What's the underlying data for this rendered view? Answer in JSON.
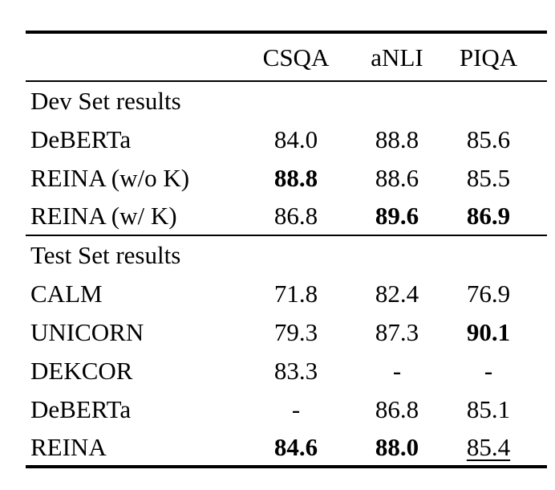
{
  "colors": {
    "background": "#ffffff",
    "text": "#000000",
    "rule": "#000000"
  },
  "table": {
    "columns": [
      "CSQA",
      "aNLI",
      "PIQA"
    ],
    "sections": [
      {
        "title": "Dev Set results",
        "rows": [
          {
            "label": "DeBERTa",
            "values": [
              {
                "text": "84.0"
              },
              {
                "text": "88.8"
              },
              {
                "text": "85.6"
              }
            ]
          },
          {
            "label": "REINA (w/o K)",
            "values": [
              {
                "text": "88.8",
                "bold": true
              },
              {
                "text": "88.6"
              },
              {
                "text": "85.5"
              }
            ]
          },
          {
            "label": "REINA (w/ K)",
            "values": [
              {
                "text": "86.8"
              },
              {
                "text": "89.6",
                "bold": true
              },
              {
                "text": "86.9",
                "bold": true
              }
            ]
          }
        ]
      },
      {
        "title": "Test Set results",
        "rows": [
          {
            "label": "CALM",
            "values": [
              {
                "text": "71.8"
              },
              {
                "text": "82.4"
              },
              {
                "text": "76.9"
              }
            ]
          },
          {
            "label": "UNICORN",
            "values": [
              {
                "text": "79.3"
              },
              {
                "text": "87.3"
              },
              {
                "text": "90.1",
                "bold": true
              }
            ]
          },
          {
            "label": "DEKCOR",
            "values": [
              {
                "text": "83.3"
              },
              {
                "text": "-"
              },
              {
                "text": "-"
              }
            ]
          },
          {
            "label": "DeBERTa",
            "values": [
              {
                "text": "-"
              },
              {
                "text": "86.8"
              },
              {
                "text": "85.1"
              }
            ]
          },
          {
            "label": "REINA",
            "values": [
              {
                "text": "84.6",
                "bold": true
              },
              {
                "text": "88.0",
                "bold": true
              },
              {
                "text": "85.4",
                "underline": true
              }
            ]
          }
        ]
      }
    ]
  }
}
